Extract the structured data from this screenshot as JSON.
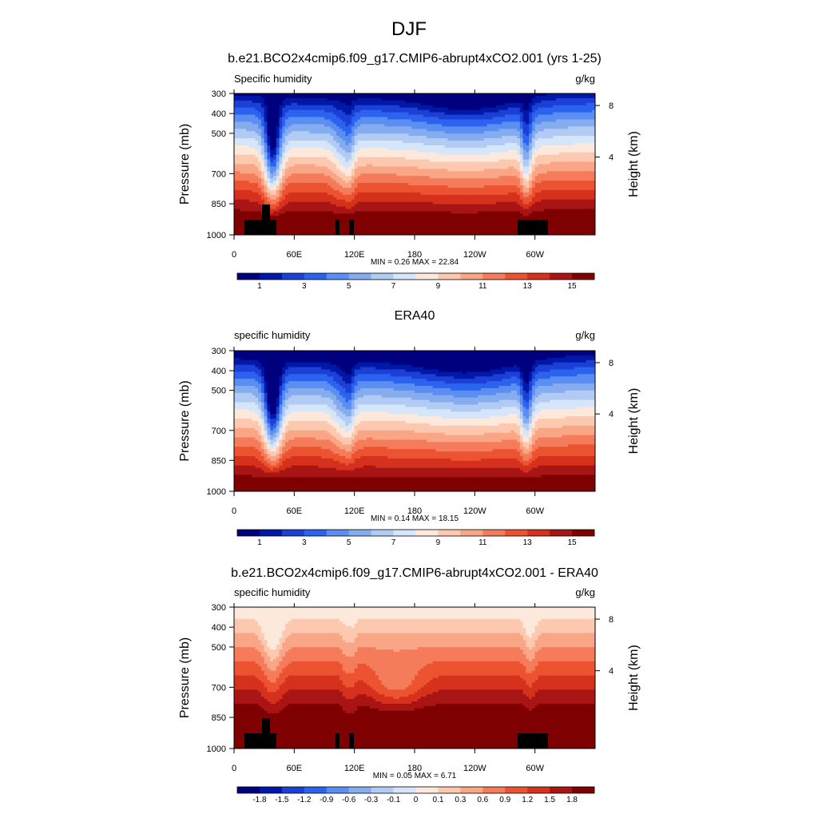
{
  "page": {
    "main_title": "DJF"
  },
  "colors": {
    "abs": [
      "#00007f",
      "#0018a8",
      "#1c3fd6",
      "#2b63ef",
      "#5a8ef2",
      "#86acf0",
      "#b1cbf4",
      "#d5e5fa",
      "#fde9dc",
      "#fcc9b0",
      "#f9a687",
      "#f47c5a",
      "#ec5330",
      "#d5311c",
      "#a91414",
      "#7f0000"
    ],
    "diff": [
      "#00007f",
      "#0018a8",
      "#1c3fd6",
      "#2b63ef",
      "#5a8ef2",
      "#86acf0",
      "#b1cbf4",
      "#d5e5fa",
      "#fde9dc",
      "#fcc9b0",
      "#f9a687",
      "#f47c5a",
      "#ec5330",
      "#d5311c",
      "#a91414",
      "#7f0000"
    ],
    "land": "#000000"
  },
  "chart_data": [
    {
      "type": "heatmap",
      "title": "b.e21.BCO2x4cmip6.f09_g17.CMIP6-abrupt4xCO2.001 (yrs 1-25)",
      "left_label": "Specific humidity",
      "right_label": "g/kg",
      "ylabel": "Pressure (mb)",
      "ylabel_right": "Height (km)",
      "x_ticks": [
        "0",
        "60E",
        "120E",
        "180",
        "120W",
        "60W"
      ],
      "y_ticks": [
        "300",
        "400",
        "500",
        "700",
        "850",
        "1000"
      ],
      "y_ticks_right": [
        "8",
        "4"
      ],
      "x_range": [
        0,
        360
      ],
      "y_range": [
        1000,
        300
      ],
      "stats": "MIN =   0.26  MAX =  22.84",
      "colorbar_labels": [
        "1",
        "3",
        "5",
        "7",
        "9",
        "11",
        "13",
        "15"
      ],
      "land_mask": true
    },
    {
      "type": "heatmap",
      "title": "ERA40",
      "left_label": "specific humidity",
      "right_label": "g/kg",
      "ylabel": "Pressure (mb)",
      "ylabel_right": "Height (km)",
      "x_ticks": [
        "0",
        "60E",
        "120E",
        "180",
        "120W",
        "60W"
      ],
      "y_ticks": [
        "300",
        "400",
        "500",
        "700",
        "850",
        "1000"
      ],
      "y_ticks_right": [
        "8",
        "4"
      ],
      "x_range": [
        0,
        360
      ],
      "y_range": [
        1000,
        300
      ],
      "stats": "MIN =   0.14  MAX =  18.15",
      "colorbar_labels": [
        "1",
        "3",
        "5",
        "7",
        "9",
        "11",
        "13",
        "15"
      ],
      "land_mask": false
    },
    {
      "type": "heatmap",
      "title": "b.e21.BCO2x4cmip6.f09_g17.CMIP6-abrupt4xCO2.001 - ERA40",
      "left_label": "specific humidity",
      "right_label": "g/kg",
      "ylabel": "Pressure (mb)",
      "ylabel_right": "Height (km)",
      "x_ticks": [
        "0",
        "60E",
        "120E",
        "180",
        "120W",
        "60W"
      ],
      "y_ticks": [
        "300",
        "400",
        "500",
        "700",
        "850",
        "1000"
      ],
      "y_ticks_right": [
        "8",
        "4"
      ],
      "x_range": [
        0,
        360
      ],
      "y_range": [
        1000,
        300
      ],
      "stats": "MIN =   0.05  MAX =   6.71",
      "colorbar_labels": [
        "-1.8",
        "-1.5",
        "-1.2",
        "-0.9",
        "-0.6",
        "-0.3",
        "-0.1",
        "0",
        "0.1",
        "0.3",
        "0.6",
        "0.9",
        "1.2",
        "1.5",
        "1.8"
      ],
      "land_mask": true
    }
  ]
}
